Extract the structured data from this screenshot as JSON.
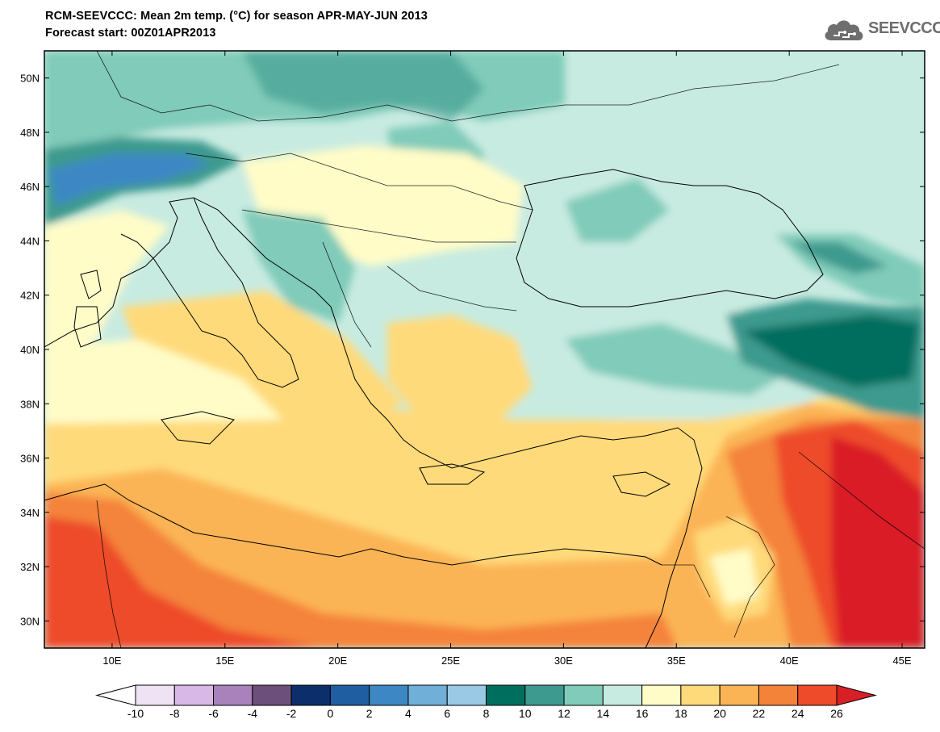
{
  "title_line1": "RCM-SEEVCCC: Mean 2m temp. (°C) for season APR-MAY-JUN 2013",
  "title_line2": "Forecast start: 00Z01APR2013",
  "logo_text": "SEEVCCC",
  "map": {
    "lon_range": [
      7,
      46
    ],
    "lat_range": [
      29,
      51
    ],
    "lat_ticks": [
      {
        "value": 30,
        "label": "30N"
      },
      {
        "value": 32,
        "label": "32N"
      },
      {
        "value": 34,
        "label": "34N"
      },
      {
        "value": 36,
        "label": "36N"
      },
      {
        "value": 38,
        "label": "38N"
      },
      {
        "value": 40,
        "label": "40N"
      },
      {
        "value": 42,
        "label": "42N"
      },
      {
        "value": 44,
        "label": "44N"
      },
      {
        "value": 46,
        "label": "46N"
      },
      {
        "value": 48,
        "label": "48N"
      },
      {
        "value": 50,
        "label": "50N"
      }
    ],
    "lon_ticks": [
      {
        "value": 10,
        "label": "10E"
      },
      {
        "value": 15,
        "label": "15E"
      },
      {
        "value": 20,
        "label": "20E"
      },
      {
        "value": 25,
        "label": "25E"
      },
      {
        "value": 30,
        "label": "30E"
      },
      {
        "value": 35,
        "label": "35E"
      },
      {
        "value": 40,
        "label": "40E"
      },
      {
        "value": 45,
        "label": "45E"
      }
    ]
  },
  "colorbar": {
    "labels": [
      "-10",
      "-8",
      "-6",
      "-4",
      "-2",
      "0",
      "2",
      "4",
      "6",
      "8",
      "10",
      "12",
      "14",
      "16",
      "18",
      "20",
      "22",
      "24",
      "26"
    ],
    "colors": [
      "#ffffff",
      "#efe2f5",
      "#d8b8e6",
      "#a982bc",
      "#6c4f7a",
      "#0c2e6b",
      "#1f5ea0",
      "#3d88c4",
      "#6fafd8",
      "#9ac9e6",
      "#006e5f",
      "#3c9a8e",
      "#80cbb9",
      "#c8ebe1",
      "#fffcc8",
      "#ffda7a",
      "#fbb455",
      "#f4833a",
      "#ee4b2a",
      "#d91f26"
    ]
  }
}
